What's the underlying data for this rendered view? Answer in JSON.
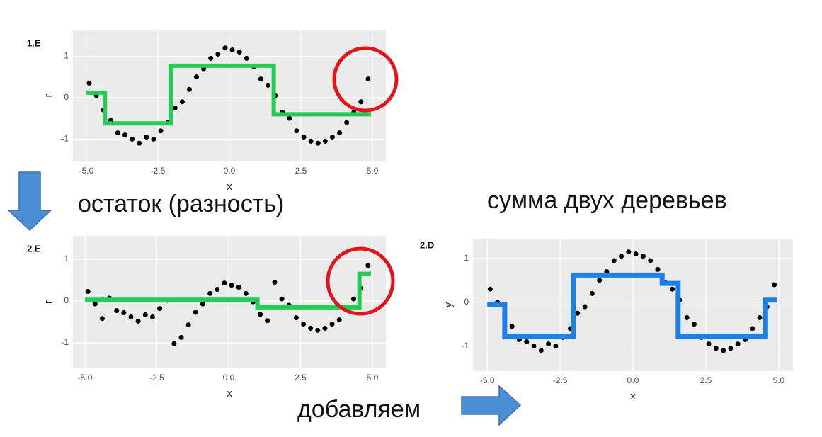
{
  "chart_data": [
    {
      "type": "scatter",
      "title": "1.E",
      "x_label": "x",
      "y_label": "r",
      "color": "#000000",
      "grid": true,
      "xlim": [
        -5.47,
        5.47
      ],
      "ylim": [
        -1.54,
        1.64
      ],
      "xticks": [
        {
          "value": -5,
          "label": "-5.0"
        },
        {
          "value": -2.5,
          "label": "-2.5"
        },
        {
          "value": 0,
          "label": "0.0"
        },
        {
          "value": 2.5,
          "label": "2.5"
        },
        {
          "value": 5,
          "label": "5.0"
        }
      ],
      "yticks": [
        -1,
        0,
        1
      ],
      "x": [
        -4.9,
        -4.65,
        -4.4,
        -4.15,
        -3.9,
        -3.65,
        -3.4,
        -3.15,
        -2.9,
        -2.65,
        -2.4,
        -2.15,
        -1.9,
        -1.65,
        -1.4,
        -1.15,
        -0.9,
        -0.65,
        -0.4,
        -0.15,
        0.1,
        0.35,
        0.6,
        0.85,
        1.1,
        1.35,
        1.6,
        1.85,
        2.1,
        2.35,
        2.6,
        2.85,
        3.1,
        3.35,
        3.6,
        3.85,
        4.1,
        4.35,
        4.6,
        4.85
      ],
      "values": [
        0.35,
        0.05,
        -0.3,
        -0.55,
        -0.85,
        -0.9,
        -1.0,
        -1.1,
        -0.95,
        -1.0,
        -0.8,
        -0.6,
        -0.25,
        -0.1,
        0.2,
        0.5,
        0.7,
        0.95,
        1.05,
        1.2,
        1.15,
        1.1,
        0.95,
        0.75,
        0.45,
        0.3,
        0.05,
        -0.35,
        -0.5,
        -0.8,
        -0.95,
        -1.05,
        -1.1,
        -1.05,
        -0.95,
        -0.85,
        -0.6,
        -0.35,
        -0.1,
        0.45
      ],
      "step": {
        "color": "#22cc55",
        "x": [
          -5,
          -4.35,
          -4.35,
          -2.05,
          -2.05,
          1.55,
          1.55,
          4.95
        ],
        "values": [
          0.12,
          0.12,
          -0.62,
          -0.62,
          0.77,
          0.77,
          -0.4,
          -0.4
        ]
      }
    },
    {
      "type": "scatter",
      "title": "2.E",
      "x_label": "x",
      "y_label": "r",
      "color": "#000000",
      "grid": true,
      "xlim": [
        -5.42,
        5.47
      ],
      "ylim": [
        -1.61,
        1.56
      ],
      "xticks": [
        {
          "value": -5,
          "label": "-5.0"
        },
        {
          "value": -2.5,
          "label": "-2.5"
        },
        {
          "value": 0,
          "label": "0.0"
        },
        {
          "value": 2.5,
          "label": "2.5"
        },
        {
          "value": 5,
          "label": "5.0"
        }
      ],
      "yticks": [
        -1,
        0,
        1
      ],
      "x": [
        -4.9,
        -4.65,
        -4.4,
        -4.15,
        -3.9,
        -3.65,
        -3.4,
        -3.15,
        -2.9,
        -2.65,
        -2.4,
        -2.15,
        -1.9,
        -1.65,
        -1.4,
        -1.15,
        -0.9,
        -0.65,
        -0.4,
        -0.15,
        0.1,
        0.35,
        0.6,
        0.85,
        1.1,
        1.35,
        1.6,
        1.85,
        2.1,
        2.35,
        2.6,
        2.85,
        3.1,
        3.35,
        3.6,
        3.85,
        4.1,
        4.35,
        4.6,
        4.85
      ],
      "values": [
        0.23,
        -0.07,
        -0.42,
        0.07,
        -0.23,
        -0.28,
        -0.38,
        -0.48,
        -0.33,
        -0.38,
        -0.18,
        0.02,
        -1.02,
        -0.87,
        -0.57,
        -0.27,
        -0.07,
        0.18,
        0.28,
        0.43,
        0.38,
        0.33,
        0.18,
        -0.02,
        -0.32,
        -0.47,
        0.45,
        0.05,
        -0.1,
        -0.4,
        -0.55,
        -0.65,
        -0.7,
        -0.65,
        -0.55,
        -0.45,
        -0.2,
        0.05,
        0.3,
        0.85
      ],
      "step": {
        "color": "#22cc55",
        "x": [
          -5,
          1.0,
          1.0,
          4.55,
          4.55,
          4.95
        ],
        "values": [
          0.03,
          0.03,
          -0.15,
          -0.15,
          0.65,
          0.65
        ]
      }
    },
    {
      "type": "scatter",
      "title": "2.D",
      "x_label": "x",
      "y_label": "y",
      "color": "#000000",
      "grid": true,
      "xlim": [
        -5.49,
        5.49
      ],
      "ylim": [
        -1.57,
        1.45
      ],
      "xticks": [
        {
          "value": -5,
          "label": "-5.0"
        },
        {
          "value": -2.5,
          "label": "-2.5"
        },
        {
          "value": 0,
          "label": "0.0"
        },
        {
          "value": 2.5,
          "label": "2.5"
        },
        {
          "value": 5,
          "label": "5.0"
        }
      ],
      "yticks": [
        -1,
        0,
        1
      ],
      "x": [
        -4.9,
        -4.65,
        -4.4,
        -4.15,
        -3.9,
        -3.65,
        -3.4,
        -3.15,
        -2.9,
        -2.65,
        -2.4,
        -2.15,
        -1.9,
        -1.65,
        -1.4,
        -1.15,
        -0.9,
        -0.65,
        -0.4,
        -0.15,
        0.1,
        0.35,
        0.6,
        0.85,
        1.1,
        1.35,
        1.6,
        1.85,
        2.1,
        2.35,
        2.6,
        2.85,
        3.1,
        3.35,
        3.6,
        3.85,
        4.1,
        4.35,
        4.6,
        4.85
      ],
      "values": [
        0.3,
        0.0,
        -0.3,
        -0.55,
        -0.85,
        -0.9,
        -1.0,
        -1.1,
        -0.95,
        -1.0,
        -0.8,
        -0.6,
        -0.25,
        -0.1,
        0.2,
        0.5,
        0.7,
        0.95,
        1.05,
        1.15,
        1.1,
        1.05,
        0.95,
        0.75,
        0.45,
        0.3,
        0.05,
        -0.35,
        -0.5,
        -0.8,
        -0.95,
        -1.05,
        -1.1,
        -1.05,
        -0.95,
        -0.85,
        -0.6,
        -0.35,
        -0.1,
        0.4
      ],
      "step": {
        "color": "#1e7fe8",
        "x": [
          -5,
          -4.4,
          -4.4,
          -2.05,
          -2.05,
          1.0,
          1.0,
          1.55,
          1.55,
          4.55,
          4.55,
          4.95
        ],
        "values": [
          -0.05,
          -0.05,
          -0.77,
          -0.77,
          0.62,
          0.62,
          0.43,
          0.43,
          -0.77,
          -0.77,
          0.05,
          0.05
        ]
      }
    }
  ],
  "captions": {
    "residual": "остаток (разность)",
    "sum": "сумма двух деревьев",
    "add": "добавляем"
  }
}
